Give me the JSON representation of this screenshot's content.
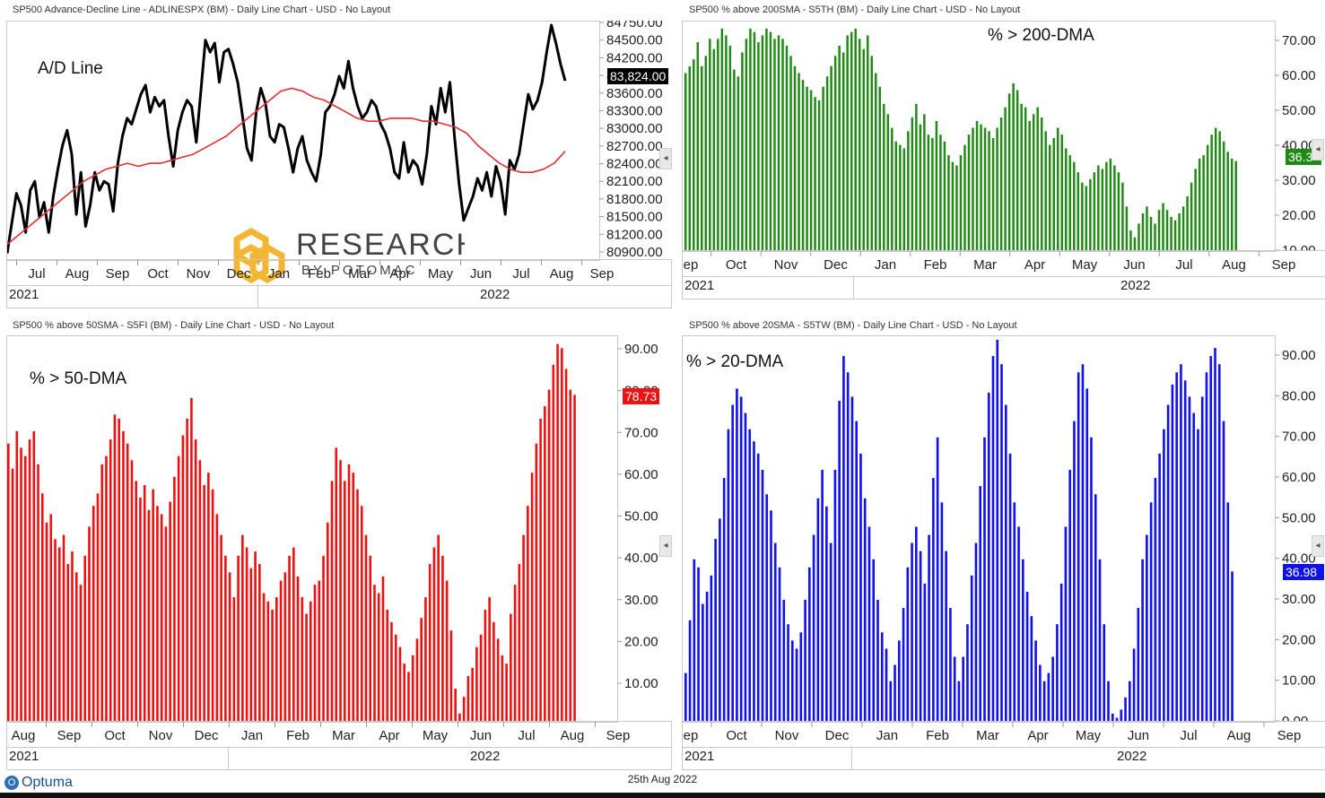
{
  "footer": {
    "brand": "Optuma",
    "date": "25th Aug 2022"
  },
  "watermark": {
    "main": "RESEARCH",
    "sub": "BY POTOMAC"
  },
  "chart_data": [
    {
      "type": "line",
      "title": "SP500 Advance-Decline Line - ADLINESPX (BM) - Daily Line Chart - USD - No Layout",
      "annotation": "A/D Line",
      "last_value": "83,824.00",
      "x_month_labels": [
        "Jul",
        "Aug",
        "Sep",
        "Oct",
        "Nov",
        "Dec",
        "Jan",
        "Feb",
        "Mar",
        "Apr",
        "May",
        "Jun",
        "Jul",
        "Aug",
        "Sep"
      ],
      "year_labels": [
        "2021",
        "2022"
      ],
      "y_tick_labels": [
        "84750.00",
        "84500.00",
        "84200.00",
        "83900.00",
        "83600.00",
        "83300.00",
        "83000.00",
        "82700.00",
        "82400.00",
        "82100.00",
        "81800.00",
        "81500.00",
        "81200.00",
        "80900.00"
      ],
      "ylim": [
        80900,
        84750
      ],
      "series": [
        {
          "color": "#000000",
          "values": [
            80950,
            81450,
            81950,
            81750,
            81300,
            82000,
            82150,
            81550,
            81800,
            81300,
            81900,
            82350,
            82750,
            83000,
            82600,
            81600,
            82300,
            81400,
            81750,
            82300,
            82000,
            82150,
            82100,
            81650,
            82450,
            82900,
            83200,
            83100,
            83350,
            83600,
            83750,
            83300,
            83550,
            83400,
            83500,
            82900,
            82400,
            83000,
            83300,
            83500,
            83400,
            82800,
            83650,
            84500,
            84300,
            84450,
            83800,
            84300,
            84350,
            84100,
            83800,
            83250,
            82700,
            82500,
            83300,
            83700,
            83450,
            82900,
            82800,
            83100,
            83050,
            82700,
            82300,
            82700,
            82900,
            82500,
            82300,
            82150,
            82600,
            83300,
            83400,
            83600,
            83900,
            83700,
            84150,
            83700,
            83400,
            83200,
            83300,
            83500,
            83400,
            83100,
            82950,
            82700,
            82300,
            82200,
            82800,
            82300,
            82500,
            82400,
            82100,
            82600,
            83400,
            83100,
            83700,
            83300,
            83800,
            82900,
            82100,
            81500,
            81700,
            81900,
            82200,
            82000,
            82300,
            81900,
            82400,
            82150,
            81600,
            82500,
            82350,
            82600,
            83100,
            83600,
            83350,
            83500,
            83800,
            84300,
            84750,
            84450,
            84100,
            83824
          ]
        },
        {
          "color": "#e03030",
          "values": [
            81100,
            81250,
            81400,
            81550,
            81700,
            81850,
            82000,
            82150,
            82250,
            82350,
            82400,
            82450,
            82400,
            82450,
            82450,
            82500,
            82550,
            82600,
            82700,
            82800,
            82900,
            83050,
            83200,
            83350,
            83500,
            83650,
            83700,
            83650,
            83550,
            83500,
            83400,
            83300,
            83200,
            83150,
            83150,
            83200,
            83200,
            83200,
            83150,
            83150,
            83100,
            83050,
            82950,
            82750,
            82600,
            82450,
            82350,
            82300,
            82300,
            82350,
            82450,
            82650
          ]
        }
      ]
    },
    {
      "type": "bar",
      "title": "SP500 % above 200SMA - S5TH (BM) - Daily Line Chart - USD - No Layout",
      "annotation": "% > 200-DMA",
      "last_value": "36.3",
      "color": "#1f8a14",
      "x_month_labels": [
        "Sep",
        "Oct",
        "Nov",
        "Dec",
        "Jan",
        "Feb",
        "Mar",
        "Apr",
        "May",
        "Jun",
        "Jul",
        "Aug",
        "Sep"
      ],
      "year_labels": [
        "2021",
        "2022"
      ],
      "y_tick_labels": [
        "70.00",
        "60.00",
        "50.00",
        "40.00",
        "30.00",
        "20.00",
        "10.00"
      ],
      "ylim": [
        10,
        76
      ],
      "values": [
        62,
        64,
        66,
        71,
        64,
        67,
        72,
        69,
        72,
        75,
        73,
        70,
        63,
        61,
        68,
        72,
        75,
        74,
        71,
        73,
        75,
        74,
        72,
        73,
        72,
        70,
        67,
        64,
        62,
        60,
        58,
        57,
        55,
        54,
        58,
        61,
        64,
        67,
        70,
        68,
        73,
        74,
        75,
        72,
        69,
        73,
        67,
        62,
        58,
        53,
        50,
        46,
        42,
        41,
        40,
        45,
        49,
        53,
        47,
        50,
        44,
        43,
        48,
        44,
        42,
        38,
        36,
        35,
        38,
        41,
        44,
        46,
        48,
        47,
        46,
        45,
        43,
        46,
        49,
        52,
        56,
        59,
        57,
        53,
        52,
        48,
        50,
        52,
        49,
        45,
        41,
        43,
        46,
        44,
        40,
        38,
        36,
        33,
        30,
        29,
        31,
        33,
        35,
        34,
        36,
        37,
        35,
        33,
        30,
        23,
        16,
        14,
        18,
        21,
        23,
        20,
        18,
        22,
        24,
        22,
        20,
        19,
        21,
        23,
        26,
        30,
        34,
        37,
        38,
        41,
        44,
        46,
        45,
        42,
        39,
        37,
        36.3
      ]
    },
    {
      "type": "bar",
      "title": "SP500 % above 50SMA - S5FI (BM) - Daily Line Chart - USD - No Layout",
      "annotation": "% > 50-DMA",
      "last_value": "78.73",
      "color": "#ee1111",
      "x_month_labels": [
        "Aug",
        "Sep",
        "Oct",
        "Nov",
        "Dec",
        "Jan",
        "Feb",
        "Mar",
        "Apr",
        "May",
        "Jun",
        "Jul",
        "Aug",
        "Sep"
      ],
      "year_labels": [
        "2021",
        "2022"
      ],
      "y_tick_labels": [
        "90.00",
        "80.00",
        "70.00",
        "60.00",
        "50.00",
        "40.00",
        "30.00",
        "20.00",
        "10.00"
      ],
      "ylim": [
        0,
        92
      ],
      "values": [
        67,
        61,
        70,
        66,
        64,
        68,
        70,
        62,
        55,
        48,
        50,
        44,
        42,
        45,
        38,
        41,
        36,
        33,
        40,
        47,
        52,
        55,
        62,
        64,
        68,
        74,
        73,
        70,
        67,
        63,
        58,
        54,
        57,
        51,
        56,
        52,
        50,
        47,
        53,
        59,
        64,
        69,
        73,
        78,
        68,
        63,
        57,
        60,
        56,
        50,
        45,
        40,
        36,
        30,
        40,
        45,
        42,
        37,
        41,
        38,
        31,
        29,
        27,
        30,
        34,
        36,
        40,
        42,
        35,
        30,
        26,
        29,
        33,
        34,
        40,
        48,
        58,
        66,
        63,
        58,
        62,
        60,
        56,
        52,
        45,
        40,
        33,
        31,
        35,
        27,
        24,
        21,
        18,
        14,
        12,
        16,
        20,
        25,
        30,
        38,
        42,
        45,
        40,
        34,
        22,
        8,
        2,
        6,
        11,
        13,
        18,
        21,
        27,
        30,
        24,
        20,
        16,
        14,
        26,
        33,
        38,
        45,
        52,
        60,
        67,
        73,
        76,
        80,
        86,
        91,
        90,
        85,
        80,
        78.73
      ]
    },
    {
      "type": "bar",
      "title": "SP500 % above 20SMA - S5TW (BM) - Daily Line Chart - USD - No Layout",
      "annotation": "% > 20-DMA",
      "last_value": "36.98",
      "color": "#1111ee",
      "x_month_labels": [
        "Sep",
        "Oct",
        "Nov",
        "Dec",
        "Jan",
        "Feb",
        "Mar",
        "Apr",
        "May",
        "Jun",
        "Jul",
        "Aug",
        "Sep"
      ],
      "year_labels": [
        "2021",
        "2022"
      ],
      "y_tick_labels": [
        "90.00",
        "80.00",
        "70.00",
        "60.00",
        "50.00",
        "40.00",
        "30.00",
        "20.00",
        "10.00",
        "0.00"
      ],
      "ylim": [
        0,
        94
      ],
      "values": [
        12,
        25,
        40,
        38,
        29,
        32,
        36,
        45,
        50,
        60,
        72,
        78,
        82,
        80,
        76,
        72,
        69,
        66,
        62,
        56,
        52,
        44,
        38,
        30,
        24,
        20,
        18,
        22,
        30,
        38,
        46,
        55,
        62,
        53,
        44,
        62,
        79,
        90,
        86,
        80,
        74,
        66,
        55,
        48,
        40,
        30,
        22,
        18,
        10,
        14,
        20,
        28,
        38,
        44,
        48,
        42,
        34,
        46,
        60,
        70,
        54,
        42,
        28,
        16,
        10,
        16,
        24,
        36,
        44,
        58,
        70,
        81,
        90,
        94,
        88,
        78,
        66,
        54,
        48,
        40,
        32,
        26,
        20,
        14,
        10,
        12,
        16,
        24,
        34,
        48,
        62,
        74,
        86,
        88,
        82,
        70,
        56,
        40,
        24,
        10,
        2,
        1,
        3,
        6,
        10,
        18,
        28,
        40,
        46,
        54,
        60,
        66,
        72,
        78,
        83,
        86,
        88,
        84,
        80,
        76,
        72,
        80,
        86,
        90,
        92,
        88,
        74,
        54,
        36.98
      ]
    }
  ]
}
